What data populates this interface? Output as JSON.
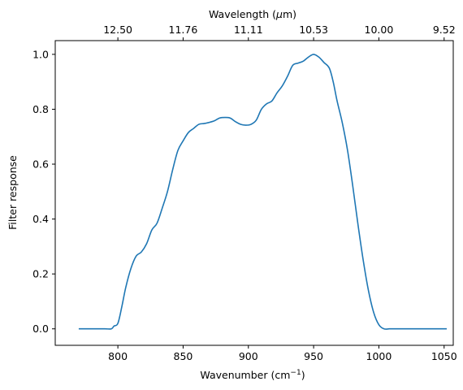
{
  "chart_data": {
    "type": "line",
    "xlabel": "Wavenumber (cm",
    "xlabel_sup": "−1",
    "xlabel_end": ")",
    "ylabel": "Filter response",
    "top_label": "Wavelength (",
    "top_label_mu": "μ",
    "top_label_end": "m)",
    "xlim": [
      752,
      1057
    ],
    "ylim": [
      -0.06,
      1.05
    ],
    "xticks": [
      800,
      850,
      900,
      950,
      1000,
      1050
    ],
    "xtick_labels": [
      "800",
      "850",
      "900",
      "950",
      "1000",
      "1050"
    ],
    "yticks": [
      0.0,
      0.2,
      0.4,
      0.6,
      0.8,
      1.0
    ],
    "ytick_labels": [
      "0.0",
      "0.2",
      "0.4",
      "0.6",
      "0.8",
      "1.0"
    ],
    "top_ticks_wavenumber": [
      800,
      850,
      900,
      950,
      1000,
      1050
    ],
    "top_tick_labels": [
      "12.50",
      "11.76",
      "11.11",
      "10.53",
      "10.00",
      "9.52"
    ],
    "grid": false,
    "line_color": "#1f77b4",
    "series": [
      {
        "x": [
          770,
          780,
          790,
          795,
          797,
          800,
          803,
          806,
          810,
          814,
          818,
          822,
          826,
          830,
          834,
          838,
          842,
          846,
          850,
          854,
          858,
          862,
          866,
          870,
          874,
          878,
          882,
          886,
          890,
          894,
          898,
          902,
          906,
          910,
          914,
          918,
          922,
          926,
          930,
          934,
          938,
          942,
          946,
          950,
          954,
          958,
          962,
          965,
          968,
          972,
          976,
          980,
          984,
          988,
          992,
          996,
          1000,
          1004,
          1008,
          1012,
          1016,
          1020,
          1024,
          1030,
          1040,
          1052
        ],
        "y": [
          0.0,
          0.0,
          0.0,
          0.0,
          0.01,
          0.02,
          0.08,
          0.15,
          0.22,
          0.265,
          0.28,
          0.31,
          0.36,
          0.385,
          0.44,
          0.5,
          0.58,
          0.65,
          0.685,
          0.715,
          0.73,
          0.745,
          0.748,
          0.752,
          0.758,
          0.768,
          0.77,
          0.768,
          0.755,
          0.745,
          0.742,
          0.745,
          0.76,
          0.8,
          0.82,
          0.83,
          0.86,
          0.885,
          0.92,
          0.96,
          0.968,
          0.975,
          0.99,
          1.0,
          0.99,
          0.97,
          0.95,
          0.9,
          0.83,
          0.75,
          0.65,
          0.52,
          0.38,
          0.25,
          0.14,
          0.06,
          0.015,
          0.0,
          0.0,
          0.0,
          0.0,
          0.0,
          0.0,
          0.0,
          0.0,
          0.0
        ]
      }
    ]
  }
}
